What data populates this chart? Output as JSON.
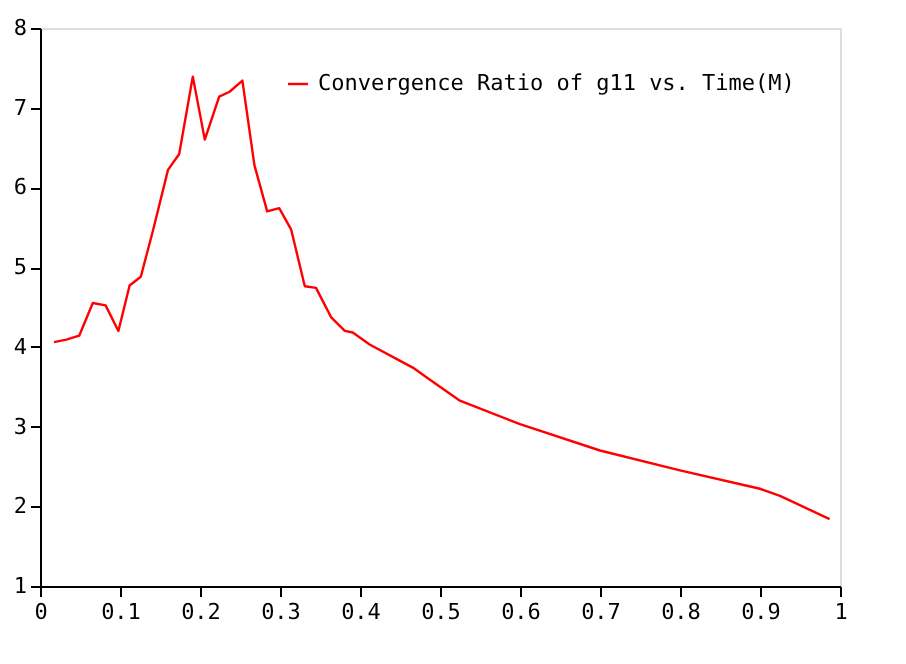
{
  "chart_data": {
    "type": "line",
    "x": [
      0.0175,
      0.033,
      0.049,
      0.066,
      0.082,
      0.098,
      0.112,
      0.126,
      0.141,
      0.16,
      0.174,
      0.191,
      0.206,
      0.224,
      0.237,
      0.253,
      0.268,
      0.284,
      0.299,
      0.314,
      0.331,
      0.345,
      0.364,
      0.381,
      0.391,
      0.412,
      0.449,
      0.466,
      0.483,
      0.524,
      0.6,
      0.7,
      0.8,
      0.9,
      0.925,
      0.987
    ],
    "series": [
      {
        "name": "Convergence Ratio of g11 vs. Time(M)",
        "color": "#ff0000",
        "values": [
          4.06,
          4.09,
          4.14,
          4.55,
          4.52,
          4.2,
          4.77,
          4.88,
          5.45,
          6.22,
          6.42,
          7.39,
          6.6,
          7.14,
          7.2,
          7.34,
          6.28,
          5.7,
          5.74,
          5.47,
          4.76,
          4.74,
          4.37,
          4.2,
          4.18,
          4.03,
          3.83,
          3.74,
          3.62,
          3.33,
          3.03,
          2.7,
          2.45,
          2.22,
          2.13,
          1.84
        ]
      }
    ],
    "xlim": [
      0,
      1
    ],
    "xticks": [
      0,
      0.1,
      0.2,
      0.3,
      0.4,
      0.5,
      0.6,
      0.7,
      0.8,
      0.9,
      1
    ],
    "ylim": [
      1,
      8
    ],
    "yticks": [
      1,
      2,
      3,
      4,
      5,
      6,
      7,
      8
    ],
    "legend": "top right",
    "grid": false,
    "marker": "none",
    "line_style": "solid"
  }
}
